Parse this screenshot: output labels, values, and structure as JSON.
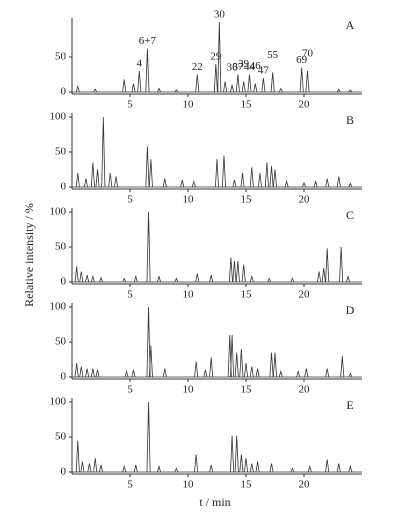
{
  "chart_data": [
    {
      "type": "chromatogram",
      "label": "A",
      "color": "#333",
      "x": [
        0.5,
        2,
        4.5,
        5.3,
        5.8,
        6.5,
        7.5,
        9,
        10.8,
        12.4,
        12.7,
        13.2,
        13.8,
        14.3,
        14.8,
        15.3,
        15.8,
        16.5,
        17.3,
        18,
        19.8,
        20.3,
        23,
        24
      ],
      "values": [
        8,
        4,
        18,
        12,
        30,
        62,
        5,
        3,
        25,
        40,
        100,
        15,
        10,
        25,
        15,
        25,
        12,
        20,
        28,
        5,
        35,
        30,
        4,
        3
      ],
      "annotations": [
        {
          "text": "4",
          "x": 5.8
        },
        {
          "text": "6+7",
          "x": 6.5
        },
        {
          "text": "22",
          "x": 10.8
        },
        {
          "text": "29",
          "x": 12.4
        },
        {
          "text": "30",
          "x": 12.7
        },
        {
          "text": "36",
          "x": 13.8
        },
        {
          "text": "37",
          "x": 14.3
        },
        {
          "text": "39",
          "x": 14.8
        },
        {
          "text": "44",
          "x": 15.3
        },
        {
          "text": "46",
          "x": 15.8
        },
        {
          "text": "47",
          "x": 16.5
        },
        {
          "text": "55",
          "x": 17.3
        },
        {
          "text": "69",
          "x": 19.8
        },
        {
          "text": "70",
          "x": 20.3
        }
      ],
      "xlim": [
        0,
        25
      ],
      "xticks": [
        5,
        10,
        15,
        20
      ],
      "ylim": [
        0,
        100
      ],
      "yticks": [
        0,
        50
      ]
    },
    {
      "type": "chromatogram",
      "label": "B",
      "color": "#333",
      "x": [
        0.5,
        1.2,
        1.8,
        2.2,
        2.7,
        3.3,
        3.8,
        6.5,
        6.8,
        8,
        9.5,
        10.5,
        12.5,
        13.1,
        14,
        14.7,
        15.5,
        16.2,
        16.8,
        17.2,
        17.5,
        18.5,
        20,
        21,
        22,
        23,
        24
      ],
      "values": [
        20,
        12,
        35,
        25,
        100,
        20,
        15,
        58,
        40,
        12,
        10,
        8,
        40,
        45,
        10,
        20,
        28,
        20,
        35,
        30,
        25,
        8,
        6,
        8,
        12,
        15,
        5
      ],
      "xlim": [
        0,
        25
      ],
      "xticks": [
        5,
        10,
        15,
        20
      ],
      "ylim": [
        0,
        100
      ],
      "yticks": [
        0,
        50,
        100
      ]
    },
    {
      "type": "chromatogram",
      "label": "C",
      "color": "#333",
      "ylabel": "Relative intensity / %",
      "x": [
        0.4,
        0.8,
        1.3,
        1.8,
        2.5,
        4.5,
        5.5,
        6.6,
        7.5,
        9,
        10.8,
        12,
        13.7,
        14,
        14.3,
        14.8,
        15.5,
        17,
        19,
        21.3,
        21.7,
        22,
        23.2,
        23.8
      ],
      "values": [
        22,
        15,
        10,
        8,
        6,
        5,
        8,
        100,
        8,
        5,
        12,
        10,
        35,
        30,
        30,
        25,
        8,
        5,
        5,
        15,
        20,
        48,
        50,
        8
      ],
      "xlim": [
        0,
        25
      ],
      "xticks": [
        5,
        10,
        15,
        20
      ],
      "ylim": [
        0,
        100
      ],
      "yticks": [
        0,
        50,
        100
      ]
    },
    {
      "type": "chromatogram",
      "label": "D",
      "color": "#333",
      "x": [
        0.4,
        0.8,
        1.3,
        1.8,
        2.2,
        4.7,
        5.3,
        6.6,
        6.8,
        8,
        10.7,
        11.5,
        12,
        13.6,
        13.8,
        14.2,
        14.6,
        15,
        15.5,
        16,
        17.2,
        17.5,
        18,
        19.5,
        20.2,
        22,
        23.3,
        24
      ],
      "values": [
        20,
        15,
        12,
        12,
        10,
        8,
        10,
        100,
        45,
        12,
        22,
        10,
        28,
        60,
        60,
        35,
        40,
        20,
        15,
        12,
        35,
        35,
        8,
        8,
        12,
        12,
        30,
        5
      ],
      "xlim": [
        0,
        25
      ],
      "xticks": [
        5,
        10,
        15,
        20
      ],
      "ylim": [
        0,
        100
      ],
      "yticks": [
        0,
        50,
        100
      ]
    },
    {
      "type": "chromatogram",
      "label": "E",
      "color": "#333",
      "xlabel": "t / min",
      "x": [
        0.5,
        0.9,
        1.5,
        2,
        2.5,
        4.5,
        5.5,
        6.6,
        7.5,
        9,
        10.7,
        12,
        13.8,
        14.2,
        14.6,
        15,
        15.5,
        16,
        17.2,
        19,
        20.5,
        22,
        23,
        24
      ],
      "values": [
        45,
        15,
        12,
        20,
        10,
        8,
        10,
        100,
        8,
        5,
        25,
        10,
        52,
        52,
        25,
        20,
        12,
        15,
        12,
        5,
        8,
        18,
        12,
        8
      ],
      "xlim": [
        0,
        25
      ],
      "xticks": [
        5,
        10,
        15,
        20
      ],
      "ylim": [
        0,
        100
      ],
      "yticks": [
        0,
        50,
        100
      ]
    }
  ]
}
